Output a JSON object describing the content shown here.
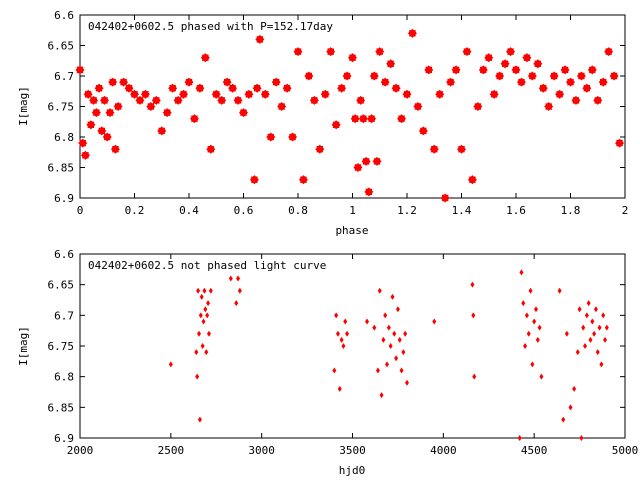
{
  "chart_data": [
    {
      "type": "scatter",
      "title": "042402+0602.5 phased with P=152.17day",
      "xlabel": "phase",
      "ylabel": "I[mag]",
      "xlim": [
        0,
        2
      ],
      "ylim": [
        6.6,
        6.9
      ],
      "y_inverted": true,
      "x_ticks": [
        0,
        0.2,
        0.4,
        0.6,
        0.8,
        1,
        1.2,
        1.4,
        1.6,
        1.8,
        2
      ],
      "x_tick_labels": [
        "0",
        "0.2",
        "0.4",
        "0.6",
        "0.8",
        "1",
        "1.2",
        "1.4",
        "1.6",
        "1.8",
        "2"
      ],
      "y_ticks": [
        6.6,
        6.65,
        6.7,
        6.75,
        6.8,
        6.85,
        6.9
      ],
      "y_tick_labels": [
        "6.6",
        "6.65",
        "6.7",
        "6.75",
        "6.8",
        "6.85",
        "6.9"
      ],
      "marker_color": "#ff0000",
      "series": [
        {
          "x": [
            0.0,
            0.01,
            0.02,
            0.03,
            0.04,
            0.05,
            0.06,
            0.07,
            0.08,
            0.09,
            0.1,
            0.11,
            0.12,
            0.13,
            0.14,
            0.16,
            0.18,
            0.2,
            0.22,
            0.24,
            0.26,
            0.28,
            0.3,
            0.32,
            0.34,
            0.36,
            0.38,
            0.4,
            0.42,
            0.44,
            0.46,
            0.48,
            0.5,
            0.52,
            0.54,
            0.56,
            0.58,
            0.6,
            0.62,
            0.64,
            0.65,
            0.66,
            0.68,
            0.7,
            0.72,
            0.74,
            0.76,
            0.78,
            0.8,
            0.82,
            0.84,
            0.86,
            0.88,
            0.9,
            0.92,
            0.94,
            0.96,
            0.98,
            1.0,
            1.01,
            1.02,
            1.03,
            1.04,
            1.05,
            1.06,
            1.07,
            1.08,
            1.09,
            1.1,
            1.12,
            1.14,
            1.16,
            1.18,
            1.2,
            1.22,
            1.24,
            1.26,
            1.28,
            1.3,
            1.32,
            1.34,
            1.36,
            1.38,
            1.4,
            1.42,
            1.44,
            1.46,
            1.48,
            1.5,
            1.52,
            1.54,
            1.56,
            1.58,
            1.6,
            1.62,
            1.64,
            1.66,
            1.68,
            1.7,
            1.72,
            1.74,
            1.76,
            1.78,
            1.8,
            1.82,
            1.84,
            1.86,
            1.88,
            1.9,
            1.92,
            1.94,
            1.96,
            1.98
          ],
          "y": [
            6.69,
            6.81,
            6.83,
            6.73,
            6.78,
            6.74,
            6.76,
            6.72,
            6.79,
            6.74,
            6.8,
            6.76,
            6.71,
            6.82,
            6.75,
            6.71,
            6.72,
            6.73,
            6.74,
            6.73,
            6.75,
            6.74,
            6.79,
            6.76,
            6.72,
            6.74,
            6.73,
            6.71,
            6.77,
            6.72,
            6.67,
            6.82,
            6.73,
            6.74,
            6.71,
            6.72,
            6.74,
            6.76,
            6.73,
            6.87,
            6.72,
            6.64,
            6.73,
            6.8,
            6.71,
            6.75,
            6.72,
            6.8,
            6.66,
            6.87,
            6.7,
            6.74,
            6.82,
            6.73,
            6.66,
            6.78,
            6.72,
            6.7,
            6.67,
            6.77,
            6.85,
            6.74,
            6.77,
            6.84,
            6.89,
            6.77,
            6.7,
            6.84,
            6.66,
            6.71,
            6.68,
            6.72,
            6.77,
            6.73,
            6.63,
            6.75,
            6.79,
            6.69,
            6.82,
            6.73,
            6.9,
            6.71,
            6.69,
            6.82,
            6.66,
            6.87,
            6.75,
            6.69,
            6.67,
            6.73,
            6.7,
            6.68,
            6.66,
            6.69,
            6.71,
            6.67,
            6.7,
            6.68,
            6.72,
            6.75,
            6.7,
            6.73,
            6.69,
            6.71,
            6.74,
            6.7,
            6.72,
            6.69,
            6.74,
            6.71,
            6.66,
            6.7,
            6.81
          ]
        }
      ]
    },
    {
      "type": "scatter",
      "title": "042402+0602.5 not phased light curve",
      "xlabel": "hjd0",
      "ylabel": "I[mag]",
      "xlim": [
        2000,
        5000
      ],
      "ylim": [
        6.6,
        6.9
      ],
      "y_inverted": true,
      "x_ticks": [
        2000,
        2500,
        3000,
        3500,
        4000,
        4500,
        5000
      ],
      "x_tick_labels": [
        "2000",
        "2500",
        "3000",
        "3500",
        "4000",
        "4500",
        "5000"
      ],
      "y_ticks": [
        6.6,
        6.65,
        6.7,
        6.75,
        6.8,
        6.85,
        6.9
      ],
      "y_tick_labels": [
        "6.6",
        "6.65",
        "6.7",
        "6.75",
        "6.8",
        "6.85",
        "6.9"
      ],
      "marker_color": "#ff0000",
      "series": [
        {
          "x": [
            2500,
            2640,
            2645,
            2650,
            2655,
            2660,
            2665,
            2670,
            2675,
            2680,
            2685,
            2690,
            2695,
            2700,
            2705,
            2710,
            2720,
            2830,
            2860,
            2870,
            2880,
            3400,
            3410,
            3420,
            3430,
            3440,
            3450,
            3460,
            3470,
            3580,
            3620,
            3640,
            3650,
            3660,
            3670,
            3680,
            3690,
            3700,
            3710,
            3720,
            3730,
            3740,
            3750,
            3760,
            3770,
            3780,
            3790,
            3800,
            3950,
            4160,
            4165,
            4170,
            4420,
            4430,
            4440,
            4450,
            4460,
            4470,
            4480,
            4490,
            4500,
            4510,
            4520,
            4530,
            4540,
            4640,
            4660,
            4680,
            4700,
            4720,
            4740,
            4750,
            4760,
            4770,
            4780,
            4790,
            4800,
            4810,
            4820,
            4830,
            4840,
            4850,
            4860,
            4870,
            4880,
            4890,
            4900
          ],
          "y": [
            6.78,
            6.76,
            6.8,
            6.66,
            6.73,
            6.87,
            6.7,
            6.67,
            6.75,
            6.71,
            6.66,
            6.69,
            6.76,
            6.7,
            6.68,
            6.73,
            6.66,
            6.64,
            6.68,
            6.64,
            6.66,
            6.79,
            6.7,
            6.73,
            6.82,
            6.74,
            6.75,
            6.71,
            6.73,
            6.71,
            6.72,
            6.79,
            6.66,
            6.83,
            6.74,
            6.7,
            6.78,
            6.72,
            6.75,
            6.67,
            6.73,
            6.77,
            6.69,
            6.74,
            6.79,
            6.76,
            6.73,
            6.81,
            6.71,
            6.65,
            6.7,
            6.8,
            6.9,
            6.63,
            6.68,
            6.75,
            6.7,
            6.73,
            6.66,
            6.78,
            6.71,
            6.69,
            6.74,
            6.72,
            6.8,
            6.66,
            6.87,
            6.73,
            6.85,
            6.82,
            6.76,
            6.69,
            6.9,
            6.72,
            6.75,
            6.7,
            6.68,
            6.74,
            6.71,
            6.73,
            6.69,
            6.76,
            6.72,
            6.78,
            6.7,
            6.74,
            6.72
          ]
        }
      ]
    }
  ]
}
